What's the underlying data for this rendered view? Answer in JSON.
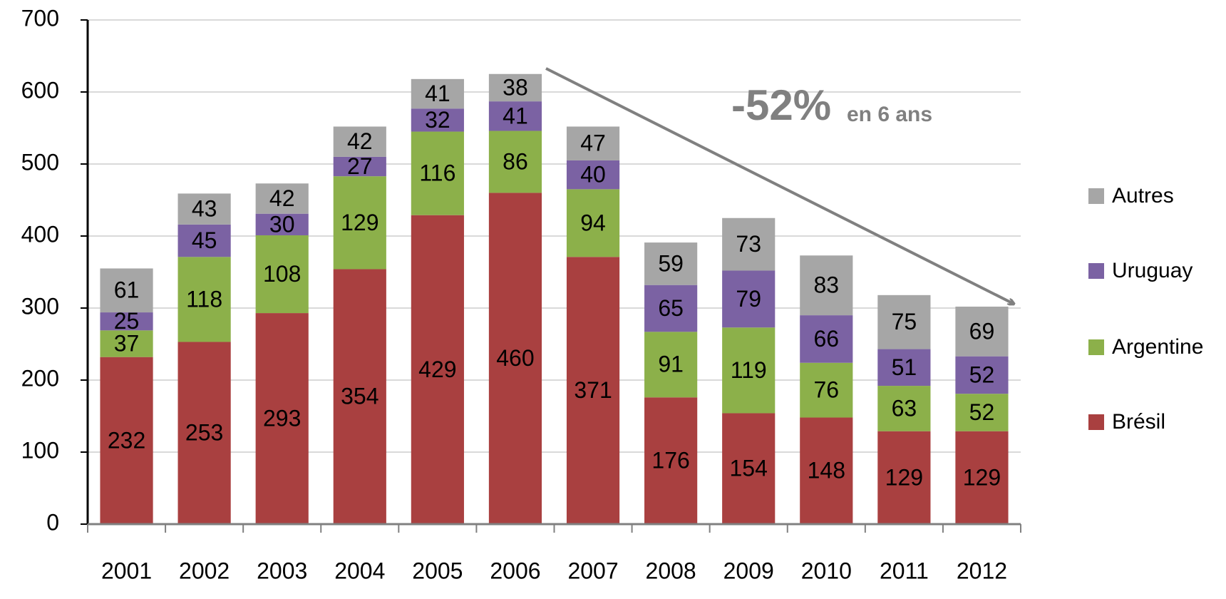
{
  "chart_data": {
    "type": "stacked_bar",
    "categories": [
      "2001",
      "2002",
      "2003",
      "2004",
      "2005",
      "2006",
      "2007",
      "2008",
      "2009",
      "2010",
      "2011",
      "2012"
    ],
    "series": [
      {
        "name": "Brésil",
        "color": "#a94040",
        "values": [
          232,
          253,
          293,
          354,
          429,
          460,
          371,
          176,
          154,
          148,
          129,
          129
        ]
      },
      {
        "name": "Argentine",
        "color": "#8cb04a",
        "values": [
          37,
          118,
          108,
          129,
          116,
          86,
          94,
          91,
          119,
          76,
          63,
          52
        ]
      },
      {
        "name": "Uruguay",
        "color": "#7b62a3",
        "values": [
          25,
          45,
          30,
          27,
          32,
          41,
          40,
          65,
          79,
          66,
          51,
          52
        ]
      },
      {
        "name": "Autres",
        "color": "#a6a6a6",
        "values": [
          61,
          43,
          42,
          42,
          41,
          38,
          47,
          59,
          73,
          83,
          75,
          69
        ]
      }
    ],
    "ylim": [
      0,
      700
    ],
    "yticks": [
      0,
      100,
      200,
      300,
      400,
      500,
      600,
      700
    ],
    "grid": true,
    "legend": "right",
    "annotations": [
      "-52%",
      "en 6 ans"
    ]
  }
}
